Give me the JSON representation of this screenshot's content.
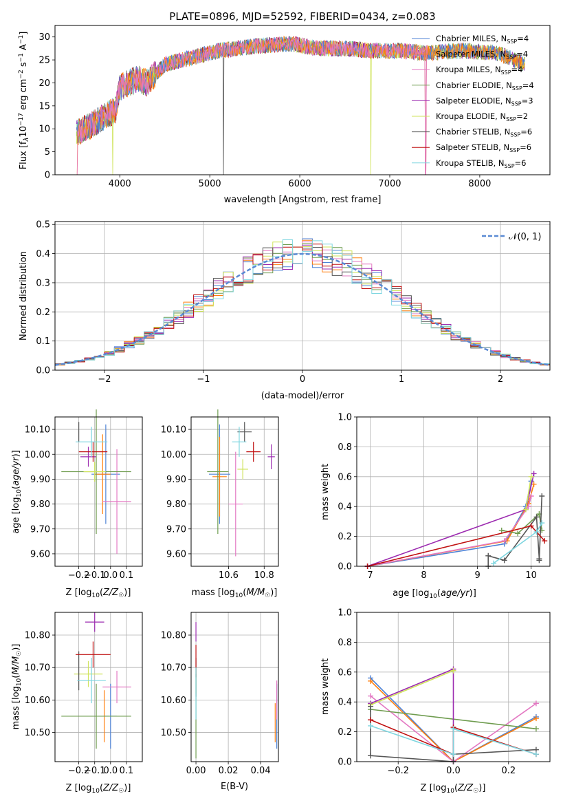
{
  "series_names": [
    "Chabrier MILES",
    "Salpeter MILES",
    "Kroupa MILES",
    "Chabrier ELODIE",
    "Salpeter ELODIE",
    "Kroupa ELODIE",
    "Chabrier STELIB",
    "Salpeter STELIB",
    "Kroupa STELIB"
  ],
  "series_colors": [
    "#4d82d6",
    "#ff7f0e",
    "#e377c2",
    "#6f9c4f",
    "#9c2bb0",
    "#cfe35a",
    "#565656",
    "#c01010",
    "#7fd6e0"
  ],
  "chart_data": [
    {
      "type": "line",
      "title": "PLATE=0896, MJD=52592, FIBERID=0434, z=0.083",
      "xlabel": "wavelength [Angstrom, rest frame]",
      "ylabel": "Flux [f_λ10^-17 erg cm^-2 s^-1 A^-1]",
      "xlim": [
        3280,
        8780
      ],
      "ylim": [
        0,
        32.5
      ],
      "xticks": [
        4000,
        5000,
        6000,
        7000,
        8000
      ],
      "yticks": [
        0,
        5,
        10,
        15,
        20,
        25,
        30
      ],
      "legend_position": "right",
      "legend": [
        {
          "label": "Chabrier MILES",
          "nssp": "4"
        },
        {
          "label": "Salpeter MILES",
          "nssp": "4"
        },
        {
          "label": "Kroupa MILES",
          "nssp": "4"
        },
        {
          "label": "Chabrier ELODIE",
          "nssp": "4"
        },
        {
          "label": "Salpeter ELODIE",
          "nssp": "3"
        },
        {
          "label": "Kroupa ELODIE",
          "nssp": "2"
        },
        {
          "label": "Chabrier STELIB",
          "nssp": "6"
        },
        {
          "label": "Salpeter STELIB",
          "nssp": "6"
        },
        {
          "label": "Kroupa STELIB",
          "nssp": "6"
        }
      ],
      "continuum": [
        [
          3520,
          9
        ],
        [
          3700,
          11
        ],
        [
          3850,
          13
        ],
        [
          3950,
          14
        ],
        [
          4000,
          19
        ],
        [
          4200,
          21
        ],
        [
          4300,
          20
        ],
        [
          4500,
          24
        ],
        [
          4700,
          25
        ],
        [
          4900,
          26
        ],
        [
          5100,
          27
        ],
        [
          5500,
          28
        ],
        [
          5900,
          28.5
        ],
        [
          6200,
          27.5
        ],
        [
          6500,
          27.5
        ],
        [
          6800,
          27
        ],
        [
          7100,
          27
        ],
        [
          7400,
          26.5
        ],
        [
          7800,
          27
        ],
        [
          8200,
          26.5
        ],
        [
          8500,
          24
        ]
      ]
    },
    {
      "type": "line",
      "xlabel": "(data-model)/error",
      "ylabel": "Normed distribution",
      "xlim": [
        -2.5,
        2.5
      ],
      "ylim": [
        0,
        0.51
      ],
      "xticks": [
        -2,
        -1,
        0,
        1,
        2
      ],
      "yticks": [
        0.0,
        0.1,
        0.2,
        0.3,
        0.4,
        0.5
      ],
      "grid": true,
      "legend_position": "top-right",
      "normal_label": "𝒩(0, 1)",
      "bin_width": 0.1
    },
    {
      "type": "scatter",
      "xlabel": "Z [log10(Z/Z☉)]",
      "ylabel": "age  [log10(age/yr)]",
      "xlim": [
        -0.35,
        0.2
      ],
      "ylim": [
        9.55,
        10.15
      ],
      "xticks": [
        -0.2,
        -0.1,
        0.0,
        0.1
      ],
      "yticks": [
        9.6,
        9.7,
        9.8,
        9.9,
        10.0,
        10.1
      ],
      "grid": true,
      "points": [
        {
          "x": -0.03,
          "y": 9.92,
          "dx": 0.09,
          "dy": 0.2
        },
        {
          "x": -0.05,
          "y": 9.92,
          "dx": 0.05,
          "dy": 0.16
        },
        {
          "x": 0.04,
          "y": 9.81,
          "dx": 0.09,
          "dy": 0.21
        },
        {
          "x": -0.09,
          "y": 9.93,
          "dx": 0.22,
          "dy": 0.25
        },
        {
          "x": -0.14,
          "y": 9.99,
          "dx": 0.05,
          "dy": 0.04
        },
        {
          "x": -0.1,
          "y": 9.93,
          "dx": 0.07,
          "dy": 0.04
        },
        {
          "x": -0.2,
          "y": 10.09,
          "dx": 0.0,
          "dy": 0.04
        },
        {
          "x": -0.11,
          "y": 10.01,
          "dx": 0.09,
          "dy": 0.04
        },
        {
          "x": -0.12,
          "y": 10.05,
          "dx": 0.1,
          "dy": 0.06
        }
      ]
    },
    {
      "type": "scatter",
      "xlabel": "mass [log10(M/M☉)]",
      "ylabel": "",
      "xlim": [
        10.39,
        10.88
      ],
      "ylim": [
        9.55,
        10.15
      ],
      "xticks": [
        10.6,
        10.8
      ],
      "yticks": [
        9.6,
        9.7,
        9.8,
        9.9,
        10.0,
        10.1
      ],
      "grid": true,
      "points": [
        {
          "x": 10.55,
          "y": 9.92,
          "dx": 0.06,
          "dy": 0.2
        },
        {
          "x": 10.55,
          "y": 9.91,
          "dx": 0.04,
          "dy": 0.16
        },
        {
          "x": 10.64,
          "y": 9.8,
          "dx": 0.04,
          "dy": 0.21
        },
        {
          "x": 10.54,
          "y": 9.93,
          "dx": 0.06,
          "dy": 0.25
        },
        {
          "x": 10.84,
          "y": 9.99,
          "dx": 0.02,
          "dy": 0.05
        },
        {
          "x": 10.68,
          "y": 9.94,
          "dx": 0.03,
          "dy": 0.04
        },
        {
          "x": 10.69,
          "y": 10.09,
          "dx": 0.04,
          "dy": 0.04
        },
        {
          "x": 10.74,
          "y": 10.01,
          "dx": 0.04,
          "dy": 0.04
        },
        {
          "x": 10.66,
          "y": 10.05,
          "dx": 0.04,
          "dy": 0.06
        }
      ]
    },
    {
      "type": "line",
      "xlabel": "age  [log10(age/yr)]",
      "ylabel": "mass weight",
      "xlim": [
        6.75,
        10.35
      ],
      "ylim": [
        0,
        1.0
      ],
      "xticks": [
        7,
        8,
        9,
        10
      ],
      "yticks": [
        0.0,
        0.2,
        0.4,
        0.6,
        0.8,
        1.0
      ],
      "grid": true,
      "series": [
        {
          "points": [
            [
              6.95,
              0.0
            ],
            [
              9.5,
              0.15
            ],
            [
              9.9,
              0.4
            ],
            [
              10.0,
              0.57
            ]
          ]
        },
        {
          "points": [
            [
              6.95,
              0.0
            ],
            [
              9.55,
              0.17
            ],
            [
              9.95,
              0.42
            ],
            [
              10.05,
              0.55
            ]
          ]
        },
        {
          "points": [
            [
              6.95,
              0.0
            ],
            [
              9.5,
              0.17
            ],
            [
              9.95,
              0.4
            ],
            [
              10.0,
              0.47
            ]
          ]
        },
        {
          "points": [
            [
              9.45,
              0.24
            ],
            [
              9.75,
              0.22
            ],
            [
              10.15,
              0.35
            ],
            [
              10.2,
              0.24
            ]
          ]
        },
        {
          "points": [
            [
              6.95,
              0.0
            ],
            [
              9.9,
              0.38
            ],
            [
              10.05,
              0.62
            ]
          ]
        },
        {
          "points": [
            [
              9.9,
              0.38
            ],
            [
              10.0,
              0.6
            ]
          ]
        },
        {
          "points": [
            [
              9.2,
              0.0
            ],
            [
              9.2,
              0.07
            ],
            [
              9.5,
              0.04
            ],
            [
              10.1,
              0.33
            ],
            [
              10.15,
              0.05
            ],
            [
              10.2,
              0.47
            ],
            [
              10.15,
              0.04
            ]
          ]
        },
        {
          "points": [
            [
              6.95,
              0.0
            ],
            [
              10.0,
              0.27
            ],
            [
              10.25,
              0.17
            ]
          ]
        },
        {
          "points": [
            [
              9.3,
              0.02
            ],
            [
              10.1,
              0.23
            ],
            [
              10.2,
              0.29
            ]
          ]
        }
      ]
    },
    {
      "type": "scatter",
      "xlabel": "Z [log10(Z/Z☉)]",
      "ylabel": "mass [log10(M/M☉)]",
      "xlim": [
        -0.35,
        0.2
      ],
      "ylim": [
        10.41,
        10.87
      ],
      "xticks": [
        -0.2,
        -0.1,
        0.0,
        0.1
      ],
      "yticks": [
        10.5,
        10.6,
        10.7,
        10.8
      ],
      "grid": true,
      "points": [
        {
          "x": 0.0,
          "y": 10.55,
          "dx": 0.04,
          "dy": 0.1
        },
        {
          "x": -0.04,
          "y": 10.55,
          "dx": 0.0,
          "dy": 0.08
        },
        {
          "x": 0.04,
          "y": 10.64,
          "dx": 0.09,
          "dy": 0.05
        },
        {
          "x": -0.09,
          "y": 10.55,
          "dx": 0.22,
          "dy": 0.1
        },
        {
          "x": -0.1,
          "y": 10.84,
          "dx": 0.06,
          "dy": 0.03
        },
        {
          "x": -0.14,
          "y": 10.68,
          "dx": 0.09,
          "dy": 0.04
        },
        {
          "x": -0.2,
          "y": 10.69,
          "dx": 0.0,
          "dy": 0.06
        },
        {
          "x": -0.11,
          "y": 10.74,
          "dx": 0.11,
          "dy": 0.04
        },
        {
          "x": -0.12,
          "y": 10.66,
          "dx": 0.09,
          "dy": 0.07
        }
      ]
    },
    {
      "type": "scatter",
      "xlabel": "E(B-V)",
      "ylabel": "",
      "xlim": [
        -0.003,
        0.051
      ],
      "ylim": [
        10.41,
        10.87
      ],
      "xticks": [
        0.0,
        0.02,
        0.04
      ],
      "yticks": [
        10.5,
        10.6,
        10.7,
        10.8
      ],
      "grid": true,
      "points": [
        {
          "x": 0.05,
          "y": 10.55,
          "dx": 0,
          "dy": 0.1
        },
        {
          "x": 0.049,
          "y": 10.53,
          "dx": 0,
          "dy": 0.06
        },
        {
          "x": 0.05,
          "y": 10.6,
          "dx": 0,
          "dy": 0.06
        },
        {
          "x": 0.0,
          "y": 10.55,
          "dx": 0,
          "dy": 0.13
        },
        {
          "x": 0.0,
          "y": 10.81,
          "dx": 0,
          "dy": 0.03
        },
        {
          "x": 0.0,
          "y": 10.66,
          "dx": 0,
          "dy": 0.04
        },
        {
          "x": 0.0,
          "y": 10.67,
          "dx": 0,
          "dy": 0.06
        },
        {
          "x": 0.0,
          "y": 10.72,
          "dx": 0,
          "dy": 0.05
        },
        {
          "x": 0.0,
          "y": 10.62,
          "dx": 0,
          "dy": 0.08
        }
      ]
    },
    {
      "type": "line",
      "xlabel": "Z [log10(Z/Z☉)]",
      "ylabel": "mass weight",
      "xlim": [
        -0.35,
        0.35
      ],
      "ylim": [
        0,
        1.0
      ],
      "xticks": [
        -0.2,
        0.0,
        0.2
      ],
      "yticks": [
        0.0,
        0.2,
        0.4,
        0.6,
        0.8,
        1.0
      ],
      "grid": true,
      "series": [
        {
          "points": [
            [
              -0.3,
              0.56
            ],
            [
              0.0,
              0.0
            ],
            [
              0.3,
              0.3
            ]
          ]
        },
        {
          "points": [
            [
              -0.3,
              0.54
            ],
            [
              0.0,
              0.0
            ],
            [
              0.3,
              0.29
            ]
          ]
        },
        {
          "points": [
            [
              -0.3,
              0.44
            ],
            [
              0.0,
              0.0
            ],
            [
              0.3,
              0.39
            ]
          ]
        },
        {
          "points": [
            [
              -0.3,
              0.35
            ],
            [
              0.3,
              0.22
            ]
          ]
        },
        {
          "points": [
            [
              -0.3,
              0.39
            ],
            [
              0.0,
              0.62
            ],
            [
              0.0,
              0.0
            ]
          ]
        },
        {
          "points": [
            [
              -0.3,
              0.38
            ],
            [
              0.0,
              0.61
            ]
          ]
        },
        {
          "points": [
            [
              -0.3,
              0.37
            ],
            [
              -0.3,
              0.04
            ],
            [
              0.0,
              0.0
            ],
            [
              0.0,
              0.05
            ],
            [
              0.3,
              0.08
            ]
          ]
        },
        {
          "points": [
            [
              -0.3,
              0.28
            ],
            [
              0.0,
              0.05
            ],
            [
              0.0,
              0.23
            ],
            [
              0.3,
              0.05
            ]
          ]
        },
        {
          "points": [
            [
              -0.3,
              0.24
            ],
            [
              0.0,
              0.05
            ],
            [
              0.0,
              0.22
            ],
            [
              0.3,
              0.05
            ]
          ]
        }
      ]
    }
  ]
}
